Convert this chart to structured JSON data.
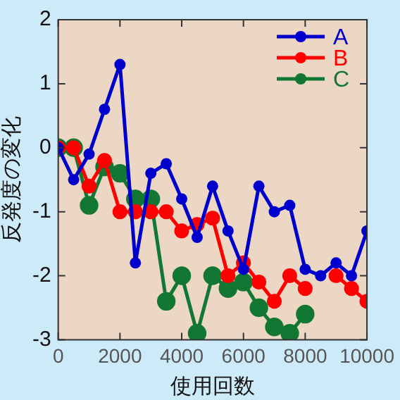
{
  "chart_data": {
    "type": "line",
    "xlabel": "使用回数",
    "ylabel": "反発度の変化",
    "x": [
      0,
      500,
      1000,
      1500,
      2000,
      2500,
      3000,
      3500,
      4000,
      4500,
      5000,
      5500,
      6000,
      6500,
      7000,
      7500,
      8000,
      8500,
      9000,
      9500,
      10000
    ],
    "series": [
      {
        "name": "A",
        "color": "#0000cc",
        "values": [
          0,
          -0.5,
          -0.1,
          0.6,
          1.3,
          -1.8,
          -0.4,
          -0.25,
          -0.8,
          -1.4,
          -0.6,
          -1.3,
          -1.9,
          -0.6,
          -1.0,
          -0.9,
          -1.9,
          -2.0,
          -1.8,
          -2.0,
          -1.3
        ]
      },
      {
        "name": "B",
        "color": "#ff0000",
        "values": [
          0,
          0,
          -0.6,
          -0.2,
          -1.0,
          -1.0,
          -1.0,
          -1.0,
          -1.3,
          -1.2,
          -1.1,
          -2.0,
          -1.8,
          -2.1,
          -2.4,
          -2.0,
          -2.2,
          null,
          -2.0,
          -2.2,
          -2.4
        ]
      },
      {
        "name": "C",
        "color": "#117733",
        "values": [
          0,
          0,
          -0.9,
          -0.3,
          -0.4,
          -0.8,
          -0.8,
          -2.4,
          -2.0,
          -2.9,
          -2.0,
          -2.2,
          -2.1,
          -2.5,
          -2.8,
          -2.9,
          -2.6,
          null,
          null,
          null,
          null
        ]
      }
    ],
    "xlim": [
      0,
      10000
    ],
    "xticks": [
      0,
      2000,
      4000,
      6000,
      8000,
      10000
    ],
    "ylim": [
      -3,
      2
    ],
    "yticks": [
      -3,
      -2,
      -1,
      0,
      1,
      2
    ],
    "grid": false,
    "legend": "top right",
    "marker": "circle",
    "line_style": "solid"
  }
}
